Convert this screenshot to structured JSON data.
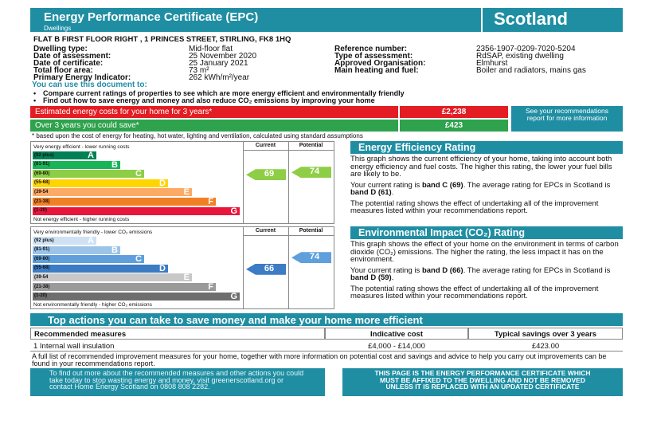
{
  "header": {
    "title": "Energy Performance Certificate (EPC)",
    "subtitle": "Dwellings",
    "country": "Scotland"
  },
  "address": "FLAT B FIRST FLOOR RIGHT , 1 PRINCES STREET, STIRLING, FK8 1HQ",
  "details": {
    "left": [
      {
        "label": "Dwelling type:",
        "value": "Mid-floor flat"
      },
      {
        "label": "Date of assessment:",
        "value": "25 November 2020"
      },
      {
        "label": "Date of certificate:",
        "value": "25 January 2021"
      },
      {
        "label": "Total floor area:",
        "value": "73 m²"
      },
      {
        "label": "Primary Energy Indicator:",
        "value": "262 kWh/m²/year"
      }
    ],
    "right": [
      {
        "label": "Reference number:",
        "value": "2356-1907-0209-7020-5204"
      },
      {
        "label": "Type of assessment:",
        "value": "RdSAP, existing dwelling"
      },
      {
        "label": "Approved Organisation:",
        "value": "Elmhurst"
      },
      {
        "label": "Main heating and fuel:",
        "value": "Boiler and radiators, mains gas"
      }
    ]
  },
  "uses": {
    "heading": "You can use this document to:",
    "items": [
      "Compare current ratings of properties to see which are more energy efficient and environmentally friendly",
      "Find out how to save energy and money and also reduce CO₂ emissions by improving your home"
    ]
  },
  "costs": {
    "rows": [
      {
        "label": "Estimated energy costs for your home for 3 years*",
        "value": "£2,238"
      },
      {
        "label": "Over 3 years you could save*",
        "value": "£423"
      }
    ],
    "note": "See your recommendations report for more information",
    "footnote": "* based upon the cost of energy for heating, hot water, lighting and ventilation, calculated using standard assumptions"
  },
  "charts": [
    {
      "top_label": "Very energy efficient - lower running costs",
      "bottom_label": "Not energy efficient - higher running costs",
      "columns": [
        "Current",
        "Potential"
      ],
      "bands": [
        {
          "range": "(92 plus)",
          "letter": "A"
        },
        {
          "range": "(81-91)",
          "letter": "B"
        },
        {
          "range": "(69-80)",
          "letter": "C"
        },
        {
          "range": "(55-68)",
          "letter": "D"
        },
        {
          "range": "(39-54",
          "letter": "E"
        },
        {
          "range": "(21-38)",
          "letter": "F"
        },
        {
          "range": "(1-20)",
          "letter": "G"
        }
      ],
      "current": "69",
      "potential": "74"
    },
    {
      "top_label": "Very environmentally friendly - lower CO₂ emissions",
      "bottom_label": "Not environmentally friendly - higher CO₂ emissions",
      "columns": [
        "Current",
        "Potential"
      ],
      "bands": [
        {
          "range": "(92 plus)",
          "letter": "A"
        },
        {
          "range": "(81-91)",
          "letter": "B"
        },
        {
          "range": "(69-80)",
          "letter": "C"
        },
        {
          "range": "(55-68)",
          "letter": "D"
        },
        {
          "range": "(39-54",
          "letter": "E"
        },
        {
          "range": "(21-38)",
          "letter": "F"
        },
        {
          "range": "(1-20)",
          "letter": "G"
        }
      ],
      "current": "66",
      "potential": "74"
    }
  ],
  "panels": [
    {
      "title": "Energy Efficiency Rating",
      "paragraphs": [
        [
          "This graph shows the current efficiency of your home, taking into account both energy efficiency and fuel costs. The higher this rating, the lower your fuel bills are likely to be."
        ],
        [
          "Your current rating is ",
          "band C (69)",
          ". The average rating for EPCs in Scotland is ",
          "band D (61)",
          "."
        ],
        [
          "The potential rating shows the effect of undertaking all of the improvement measures listed within your recommendations report."
        ]
      ]
    },
    {
      "title": "Environmental Impact (CO₂) Rating",
      "paragraphs": [
        [
          "This graph shows the effect of your home on the environment in terms of carbon dioxide (CO₂) emissions. The higher the rating, the less impact it has on the environment."
        ],
        [
          "Your current rating is ",
          "band D (66)",
          ". The average rating for EPCs in Scotland is ",
          "band D (59)",
          "."
        ],
        [
          "The potential rating shows the effect of undertaking all of the improvement measures listed within your recommendations report."
        ]
      ]
    }
  ],
  "actions": {
    "title": "Top actions you can take to save money and make your home more efficient",
    "headers": [
      "Recommended measures",
      "Indicative cost",
      "Typical savings over 3 years"
    ],
    "rows": [
      [
        "1 Internal wall insulation",
        "£4,000 - £14,000",
        "£423.00"
      ]
    ],
    "note": "A full list of recommended improvement measures for your home, together with more information on potential cost and savings and advice to help you carry out improvements can be found in your recommendations report."
  },
  "footer": {
    "left": "To find out more about the recommended measures and other actions you could take today to stop wasting energy and money, visit greenerscotland.org or contact Home Energy Scotland on 0808 808 2282.",
    "right": "THIS PAGE IS THE ENERGY PERFORMANCE CERTIFICATE WHICH MUST BE AFFIXED TO THE DWELLING AND NOT BE REMOVED UNLESS IT IS REPLACED WITH AN UPDATED CERTIFICATE"
  }
}
